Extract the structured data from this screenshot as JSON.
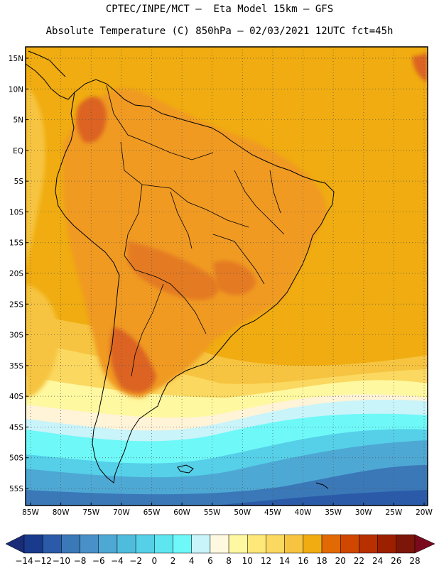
{
  "title_line1": "CPTEC/INPE/MCT –  Eta Model 15km – GFS",
  "title_line2": "Absolute Temperature (C) 850hPa – 02/03/2021 12UTC fct=45h",
  "lat_labels": [
    "15N",
    "10N",
    "5N",
    "EQ",
    "5S",
    "10S",
    "15S",
    "20S",
    "25S",
    "30S",
    "35S",
    "40S",
    "45S",
    "50S",
    "55S"
  ],
  "lat_values": [
    15,
    10,
    5,
    0,
    -5,
    -10,
    -15,
    -20,
    -25,
    -30,
    -35,
    -40,
    -45,
    -50,
    -55
  ],
  "lon_labels": [
    "85W",
    "80W",
    "75W",
    "70W",
    "65W",
    "60W",
    "55W",
    "50W",
    "45W",
    "40W",
    "35W",
    "30W",
    "25W",
    "20W"
  ],
  "lon_values": [
    -85,
    -80,
    -75,
    -70,
    -65,
    -60,
    -55,
    -50,
    -45,
    -40,
    -35,
    -30,
    -25,
    -20
  ],
  "colorbar": {
    "labels": [
      "-14",
      "-12",
      "-10",
      "-8",
      "-6",
      "-4",
      "-2",
      "0",
      "2",
      "4",
      "6",
      "8",
      "10",
      "12",
      "14",
      "16",
      "18",
      "20",
      "22",
      "24",
      "26",
      "28"
    ],
    "colors": [
      "#1a3a8c",
      "#2b5ba8",
      "#3a78b8",
      "#4a90c8",
      "#4ea8d4",
      "#50bcdc",
      "#55d0e8",
      "#5ee6f0",
      "#6ef8f8",
      "#c8f4fa",
      "#fff8e0",
      "#fef8a0",
      "#fde878",
      "#fbd860",
      "#f6c440",
      "#f0ac10",
      "#e26a04",
      "#d04800",
      "#b83000",
      "#9c2000",
      "#7c1608"
    ],
    "under_color": "#1a2c78",
    "over_color": "#7a0a1e"
  },
  "field_colors": {
    "ocean_warm": "#f0ac10",
    "land_warm": "#f09a20",
    "hot": "#e47a22",
    "hottest": "#dc6422",
    "mild": "#f6c440",
    "cool_yellow": "#fbd860",
    "pale": "#fef8a0",
    "cream": "#fff3d8",
    "cyan_pale": "#c8f4fa",
    "cyan": "#6ef8f8",
    "cyan_mid": "#55d0e8",
    "blue_light": "#4ea8d4",
    "blue_mid": "#3a78b8",
    "blue_dark": "#2b5ba8"
  }
}
